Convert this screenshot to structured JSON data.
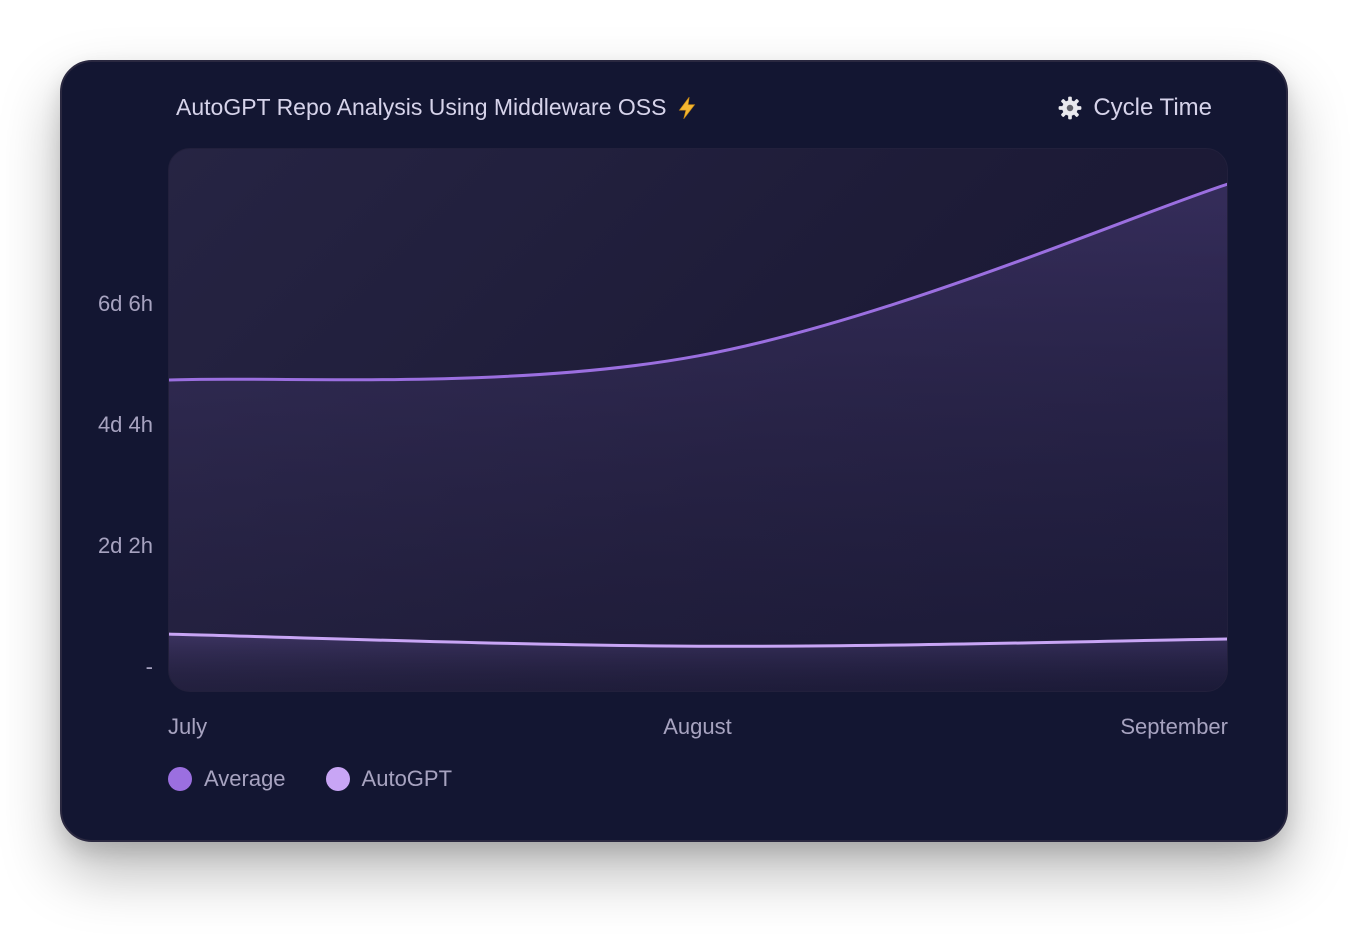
{
  "header": {
    "title": "AutoGPT Repo Analysis Using Middleware OSS",
    "title_icon": "lightning-bolt-icon",
    "metric_label": "Cycle Time",
    "metric_icon": "gear-icon"
  },
  "chart_data": {
    "type": "area",
    "title": "AutoGPT Repo Analysis Using Middleware OSS",
    "x": [
      "July",
      "August",
      "September"
    ],
    "y_tick_labels": [
      "6d 6h",
      "4d 4h",
      "2d 2h",
      "-"
    ],
    "y_tick_values_hours": [
      150,
      100,
      50,
      0
    ],
    "ylim_hours": [
      0,
      210
    ],
    "series": [
      {
        "name": "Average",
        "values_hours": [
          119,
          129,
          200
        ],
        "color": "#9b6fe0"
      },
      {
        "name": "AutoGPT",
        "values_hours": [
          14,
          9,
          12
        ],
        "color": "#c8a5f5"
      }
    ],
    "grid": false,
    "legend_placement": "bottom-left"
  }
}
